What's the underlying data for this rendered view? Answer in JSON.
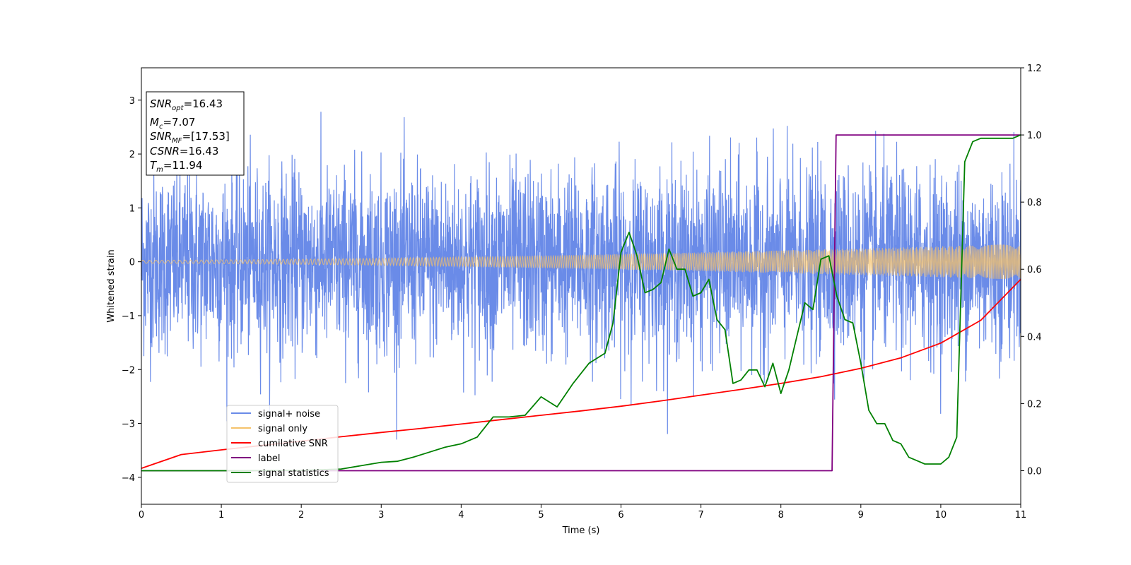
{
  "chart_data": {
    "type": "line",
    "xlabel": "Time (s)",
    "ylabel": "Whitened strain",
    "xlim": [
      0,
      11
    ],
    "ylim": [
      -4.5,
      3.6
    ],
    "ylim_right": [
      -0.1,
      1.2
    ],
    "xticks": [
      "0",
      "1",
      "2",
      "3",
      "4",
      "5",
      "6",
      "7",
      "8",
      "9",
      "10",
      "11"
    ],
    "yticks_left": [
      "3",
      "2",
      "1",
      "0",
      "−1",
      "−2",
      "−3",
      "−4"
    ],
    "yticks_right": [
      "1.2",
      "1.0",
      "0.8",
      "0.6",
      "0.4",
      "0.2",
      "0.0"
    ],
    "grid": false,
    "legend_position": "lower-left",
    "stats": {
      "snr_opt": {
        "base": "SNR",
        "sub": "opt",
        "value": "=16.43"
      },
      "mc": {
        "base": "M",
        "sub": "c",
        "value": "=7.07"
      },
      "snr_mf": {
        "base": "SNR",
        "sub": "MF",
        "value": "=[17.53]"
      },
      "csnr": {
        "base": "CSNR",
        "value": "=16.43"
      },
      "tm": {
        "base": "T",
        "sub": "m",
        "value": "=11.94"
      }
    },
    "series": [
      {
        "name": "signal+ noise",
        "axis": "left",
        "color": "#6a8be8",
        "description_kind": "noise",
        "amplitude_std": 0.85
      },
      {
        "name": "signal only",
        "axis": "left",
        "color": "#f5c26b",
        "description_kind": "chirp",
        "amplitude_start": 0.03,
        "amplitude_end": 0.33
      },
      {
        "name": "cumilative SNR",
        "axis": "right",
        "color": "#ff0000",
        "x": [
          0,
          0.5,
          1,
          1.5,
          2,
          2.5,
          3,
          3.5,
          4,
          4.5,
          5,
          5.5,
          6,
          6.5,
          7,
          7.5,
          8,
          8.5,
          9,
          9.5,
          10,
          10.5,
          11
        ],
        "y": [
          0.007,
          0.048,
          0.062,
          0.075,
          0.088,
          0.101,
          0.114,
          0.126,
          0.139,
          0.152,
          0.165,
          0.178,
          0.192,
          0.208,
          0.225,
          0.242,
          0.26,
          0.28,
          0.305,
          0.336,
          0.38,
          0.448,
          0.57
        ]
      },
      {
        "name": "label",
        "axis": "right",
        "color": "#800080",
        "x": [
          0,
          8.64,
          8.69,
          11
        ],
        "y": [
          0.0,
          0.0,
          1.0,
          1.0
        ]
      },
      {
        "name": "signal statistics",
        "axis": "right",
        "color": "#008000",
        "x": [
          0,
          1,
          2,
          2.5,
          2.8,
          3.0,
          3.2,
          3.4,
          3.6,
          3.8,
          4.0,
          4.2,
          4.4,
          4.6,
          4.8,
          5.0,
          5.2,
          5.4,
          5.6,
          5.8,
          5.9,
          6.0,
          6.1,
          6.2,
          6.3,
          6.4,
          6.5,
          6.6,
          6.7,
          6.8,
          6.9,
          7.0,
          7.1,
          7.2,
          7.3,
          7.4,
          7.5,
          7.6,
          7.7,
          7.8,
          7.9,
          8.0,
          8.1,
          8.2,
          8.3,
          8.4,
          8.5,
          8.6,
          8.7,
          8.8,
          8.9,
          9.0,
          9.1,
          9.2,
          9.3,
          9.4,
          9.5,
          9.6,
          9.7,
          9.8,
          9.9,
          10.0,
          10.1,
          10.2,
          10.3,
          10.4,
          10.5,
          10.7,
          10.9,
          11.0
        ],
        "y": [
          0.0,
          0.0,
          0.001,
          0.005,
          0.017,
          0.025,
          0.028,
          0.04,
          0.055,
          0.07,
          0.08,
          0.1,
          0.16,
          0.16,
          0.165,
          0.22,
          0.19,
          0.26,
          0.32,
          0.35,
          0.44,
          0.65,
          0.71,
          0.64,
          0.53,
          0.54,
          0.56,
          0.66,
          0.6,
          0.6,
          0.52,
          0.53,
          0.57,
          0.45,
          0.42,
          0.26,
          0.27,
          0.3,
          0.3,
          0.25,
          0.32,
          0.23,
          0.3,
          0.4,
          0.5,
          0.48,
          0.63,
          0.64,
          0.52,
          0.45,
          0.44,
          0.32,
          0.18,
          0.14,
          0.14,
          0.09,
          0.08,
          0.04,
          0.03,
          0.02,
          0.02,
          0.02,
          0.04,
          0.1,
          0.92,
          0.98,
          0.99,
          0.99,
          0.99,
          1.0
        ]
      }
    ]
  }
}
